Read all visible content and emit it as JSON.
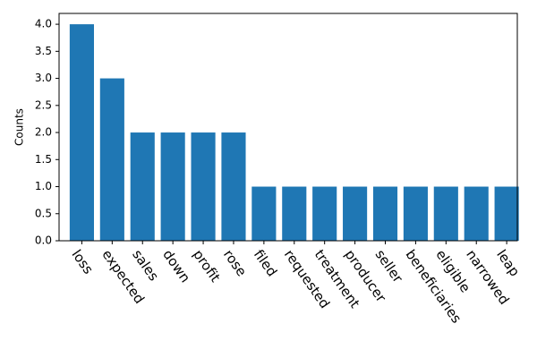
{
  "chart_data": {
    "type": "bar",
    "y_label": "Counts",
    "categories": [
      "loss",
      "expected",
      "sales",
      "down",
      "profit",
      "rose",
      "filed",
      "requested",
      "treatment",
      "producer",
      "seller",
      "beneficiaries",
      "eligible",
      "narrowed",
      "leap"
    ],
    "values": [
      4,
      3,
      2,
      2,
      2,
      2,
      1,
      1,
      1,
      1,
      1,
      1,
      1,
      1,
      1
    ],
    "color": "#1f77b4",
    "ylim": [
      0,
      4.2
    ],
    "yticks": [
      {
        "value": 0,
        "label": "0.0"
      },
      0.5,
      {
        "value": 1,
        "label": "1.0"
      },
      1.5,
      {
        "value": 2,
        "label": "2.0"
      },
      2.5,
      {
        "value": 3,
        "label": "3.0"
      },
      3.5,
      {
        "value": 4,
        "label": "4.0"
      }
    ],
    "grid": false
  }
}
